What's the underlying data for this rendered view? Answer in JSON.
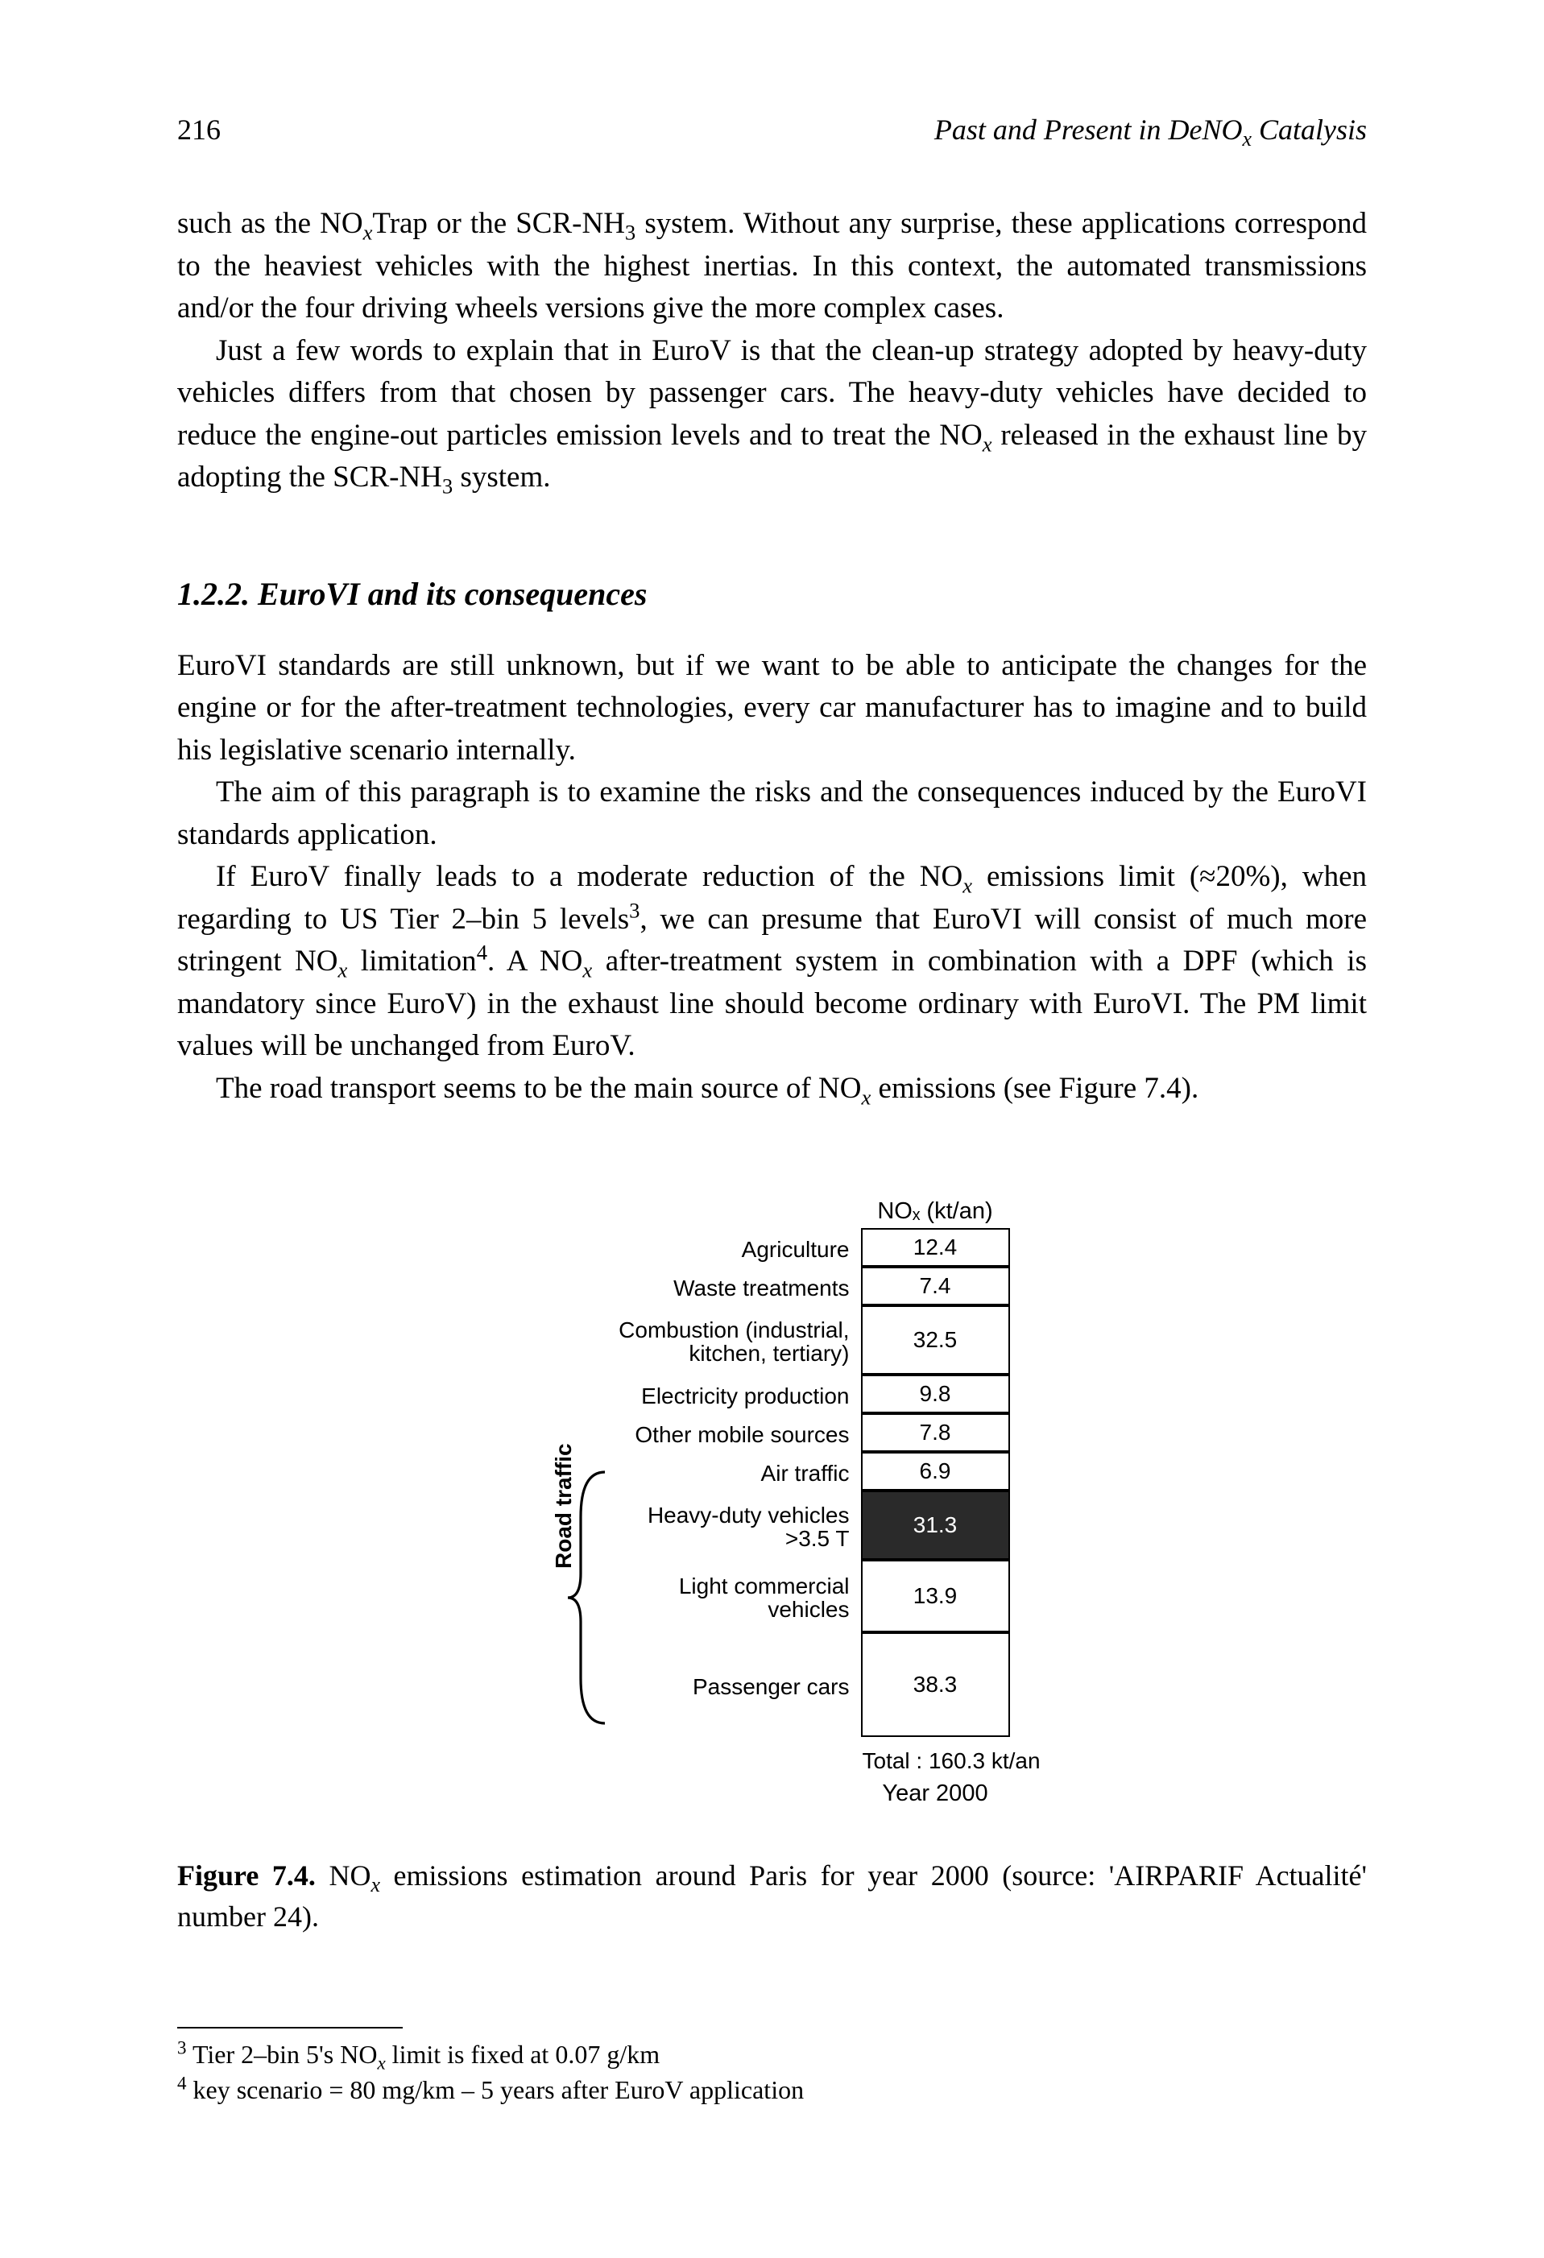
{
  "page_number": "216",
  "running_head": "Past and Present in DeNOₓ Catalysis",
  "para1_a": "such as the NO",
  "para1_b": "Trap or the SCR-NH",
  "para1_c": " system. Without any surprise, these applications correspond to the heaviest vehicles with the highest inertias. In this context, the automated transmissions and/or the four driving wheels versions give the more complex cases.",
  "para2_a": "Just a few words to explain that in EuroV is that the clean-up strategy adopted by heavy-duty vehicles differs from that chosen by passenger cars. The heavy-duty vehicles have decided to reduce the engine-out particles emission levels and to treat the NO",
  "para2_b": " released in the exhaust line by adopting the SCR-NH",
  "para2_c": " system.",
  "section_heading": "1.2.2. EuroVI and its consequences",
  "para3": "EuroVI standards are still unknown, but if we want to be able to anticipate the changes for the engine or for the after-treatment technologies, every car manufacturer has to imagine and to build his legislative scenario internally.",
  "para4": "The aim of this paragraph is to examine the risks and the consequences induced by the EuroVI standards application.",
  "para5_a": "If EuroV finally leads to a moderate reduction of the NO",
  "para5_b": " emissions limit (≈20%), when regarding to US Tier 2–bin 5 levels",
  "para5_c": ", we can presume that EuroVI will consist of much more stringent NO",
  "para5_d": " limitation",
  "para5_e": ". A NO",
  "para5_f": " after-treatment system in combination with a DPF (which is mandatory since EuroV) in the exhaust line should become ordinary with EuroVI. The PM limit values will be unchanged from EuroV.",
  "para6_a": "The road transport seems to be the main source of NO",
  "para6_b": " emissions (see Figure 7.4).",
  "figure": {
    "column_title": "NOₓ (kt/an)",
    "rows": [
      {
        "label": "Agriculture",
        "value": "12.4",
        "height": "row-h1",
        "dark": false
      },
      {
        "label": "Waste treatments",
        "value": "7.4",
        "height": "row-h1",
        "dark": false
      },
      {
        "label": "Combustion (industrial, kitchen, tertiary)",
        "value": "32.5",
        "height": "row-h2",
        "dark": false
      },
      {
        "label": "Electricity production",
        "value": "9.8",
        "height": "row-h1",
        "dark": false
      },
      {
        "label": "Other mobile sources",
        "value": "7.8",
        "height": "row-h1",
        "dark": false
      },
      {
        "label": "Air traffic",
        "value": "6.9",
        "height": "row-h1",
        "dark": false
      },
      {
        "label": "Heavy-duty vehicles >3.5 T",
        "value": "31.3",
        "height": "row-h2",
        "dark": true
      },
      {
        "label": "Light commercial vehicles",
        "value": "13.9",
        "height": "row-h3",
        "dark": false
      },
      {
        "label": "Passenger cars",
        "value": "38.3",
        "height": "row-h4",
        "dark": false
      }
    ],
    "road_traffic_label": "Road traffic",
    "total": "Total : 160.3 kt/an",
    "year": "Year 2000"
  },
  "caption_label": "Figure 7.4.",
  "caption_a": " NO",
  "caption_b": " emissions estimation around Paris for year 2000 (source: 'AIRPARIF Actualité' number 24).",
  "footnote3_a": " Tier 2–bin 5's NO",
  "footnote3_b": " limit is fixed at 0.07 g/km",
  "footnote4": " key scenario = 80 mg/km – 5 years after EuroV application"
}
